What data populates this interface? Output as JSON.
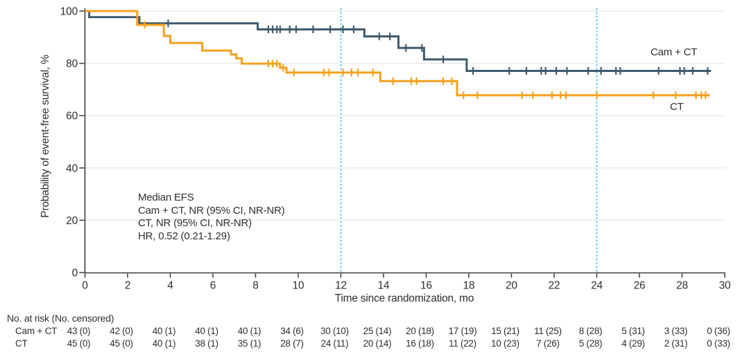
{
  "colors": {
    "cam_ct": "#3E5A6D",
    "ct": "#F4A11D",
    "reference_line": "#45BEE8",
    "grid": "#E8E8E8",
    "axis": "#3C3C3C",
    "text": "#2E2E2E"
  },
  "chart_data": {
    "type": "line",
    "subtype": "kaplan-meier-step",
    "title": "",
    "xlabel": "Time since randomization, mo",
    "ylabel": "Probability of event-free survival, %",
    "xlim": [
      0,
      30
    ],
    "ylim": [
      0,
      100
    ],
    "xticks": [
      0,
      2,
      4,
      6,
      8,
      10,
      12,
      14,
      16,
      18,
      20,
      22,
      24,
      26,
      28,
      30
    ],
    "yticks": [
      0,
      20,
      40,
      60,
      80,
      100
    ],
    "grid": "horizontal-light",
    "reference_months": [
      12,
      24
    ],
    "annotation": [
      "Median EFS",
      "Cam + CT, NR (95% CI, NR-NR)",
      "CT, NR (95% CI, NR-NR)",
      "HR, 0.52 (0.21-1.29)"
    ],
    "series": [
      {
        "name": "Cam + CT",
        "color": "#3E5A6D",
        "steps": [
          [
            0,
            100
          ],
          [
            0.2,
            97.7
          ],
          [
            2.55,
            95.3
          ],
          [
            8.1,
            93.0
          ],
          [
            13.1,
            90.3
          ],
          [
            14.7,
            85.9
          ],
          [
            15.9,
            81.5
          ],
          [
            17.9,
            77.1
          ]
        ],
        "end_x": 29.35,
        "censors": [
          [
            3.9,
            95.3
          ],
          [
            8.6,
            93.0
          ],
          [
            8.8,
            93.0
          ],
          [
            9.0,
            93.0
          ],
          [
            9.15,
            93.0
          ],
          [
            9.6,
            93.0
          ],
          [
            9.9,
            93.0
          ],
          [
            10.7,
            93.0
          ],
          [
            11.5,
            93.0
          ],
          [
            12.1,
            93.0
          ],
          [
            12.6,
            93.0
          ],
          [
            13.8,
            90.3
          ],
          [
            14.3,
            90.3
          ],
          [
            15.05,
            85.9
          ],
          [
            15.8,
            85.9
          ],
          [
            16.8,
            81.5
          ],
          [
            18.2,
            77.1
          ],
          [
            19.9,
            77.1
          ],
          [
            20.7,
            77.1
          ],
          [
            21.4,
            77.1
          ],
          [
            21.6,
            77.1
          ],
          [
            22.1,
            77.1
          ],
          [
            22.6,
            77.1
          ],
          [
            23.6,
            77.1
          ],
          [
            24.2,
            77.1
          ],
          [
            24.9,
            77.1
          ],
          [
            25.1,
            77.1
          ],
          [
            26.9,
            77.1
          ],
          [
            27.9,
            77.1
          ],
          [
            28.1,
            77.1
          ],
          [
            28.5,
            77.1
          ],
          [
            29.2,
            77.1
          ]
        ]
      },
      {
        "name": "CT",
        "color": "#F4A11D",
        "steps": [
          [
            0,
            100
          ],
          [
            2.45,
            94.7
          ],
          [
            3.7,
            90.5
          ],
          [
            4.0,
            87.8
          ],
          [
            5.5,
            84.9
          ],
          [
            6.85,
            83.4
          ],
          [
            7.1,
            81.9
          ],
          [
            7.35,
            79.9
          ],
          [
            9.15,
            78.3
          ],
          [
            9.45,
            76.5
          ],
          [
            13.85,
            73.2
          ],
          [
            17.45,
            67.8
          ]
        ],
        "end_x": 29.3,
        "censors": [
          [
            2.8,
            94.7
          ],
          [
            8.6,
            79.9
          ],
          [
            8.8,
            79.9
          ],
          [
            9.0,
            79.9
          ],
          [
            9.3,
            78.3
          ],
          [
            9.8,
            76.5
          ],
          [
            11.2,
            76.5
          ],
          [
            11.45,
            76.5
          ],
          [
            12.1,
            76.5
          ],
          [
            12.5,
            76.5
          ],
          [
            12.8,
            76.5
          ],
          [
            13.5,
            76.5
          ],
          [
            14.45,
            73.2
          ],
          [
            15.3,
            73.2
          ],
          [
            15.55,
            73.2
          ],
          [
            16.8,
            73.2
          ],
          [
            17.2,
            73.2
          ],
          [
            17.75,
            67.8
          ],
          [
            18.4,
            67.8
          ],
          [
            20.5,
            67.8
          ],
          [
            21.0,
            67.8
          ],
          [
            21.9,
            67.8
          ],
          [
            22.3,
            67.8
          ],
          [
            22.55,
            67.8
          ],
          [
            24.0,
            67.8
          ],
          [
            26.65,
            67.8
          ],
          [
            27.7,
            67.8
          ],
          [
            28.65,
            67.8
          ],
          [
            28.9,
            67.8
          ],
          [
            29.1,
            67.8
          ]
        ]
      }
    ]
  },
  "risk_table": {
    "header": "No. at risk (No. censored)",
    "time_points": [
      0,
      2,
      4,
      6,
      8,
      10,
      12,
      14,
      16,
      18,
      20,
      22,
      24,
      26,
      28,
      30
    ],
    "rows": [
      {
        "label": "Cam + CT",
        "values": [
          "43 (0)",
          "42 (0)",
          "40 (1)",
          "40 (1)",
          "40 (1)",
          "34 (6)",
          "30 (10)",
          "25 (14)",
          "20 (18)",
          "17 (19)",
          "15 (21)",
          "11 (25)",
          "8 (28)",
          "5 (31)",
          "3 (33)",
          "0 (36)"
        ]
      },
      {
        "label": "CT",
        "values": [
          "45 (0)",
          "45 (0)",
          "40 (1)",
          "38 (1)",
          "35 (1)",
          "28 (7)",
          "24 (11)",
          "20 (14)",
          "16 (18)",
          "11 (22)",
          "10 (23)",
          "7 (26)",
          "5 (28)",
          "4 (29)",
          "2 (31)",
          "0 (33)"
        ]
      }
    ]
  }
}
